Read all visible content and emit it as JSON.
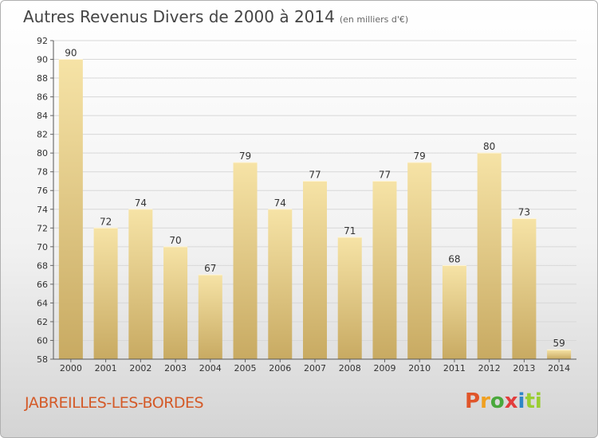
{
  "header": {
    "title": "Autres Revenus Divers de 2000 à 2014",
    "unit": "(en milliers d'€)"
  },
  "footer": {
    "place": "JABREILLES-LES-BORDES",
    "logo_letters": [
      "P",
      "r",
      "o",
      "x",
      "i",
      "ti"
    ]
  },
  "colors": {
    "bar_top": "#f6e3a6",
    "bar_bottom": "#c8aa62",
    "place": "#d45a28"
  },
  "chart_data": {
    "type": "bar",
    "title": "Autres Revenus Divers de 2000 à 2014",
    "xlabel": "",
    "ylabel": "",
    "ylim": [
      58,
      92
    ],
    "yticks": [
      58,
      60,
      62,
      64,
      66,
      68,
      70,
      72,
      74,
      76,
      78,
      80,
      82,
      84,
      86,
      88,
      90,
      92
    ],
    "categories": [
      "2000",
      "2001",
      "2002",
      "2003",
      "2004",
      "2005",
      "2006",
      "2007",
      "2008",
      "2009",
      "2010",
      "2011",
      "2012",
      "2013",
      "2014"
    ],
    "values": [
      90,
      72,
      74,
      70,
      67,
      79,
      74,
      77,
      71,
      77,
      79,
      68,
      80,
      73,
      59
    ],
    "grid": true,
    "legend": "none"
  }
}
